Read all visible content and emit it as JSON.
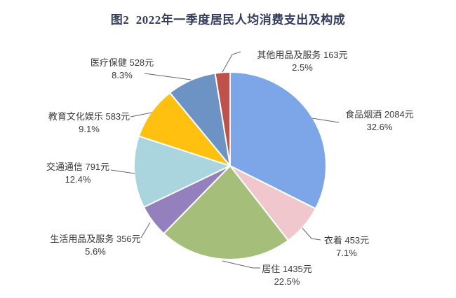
{
  "chart_data": {
    "type": "pie",
    "title": "图2  2022年一季度居民人均消费支出及构成",
    "unit": "元",
    "legend": "none",
    "label_style": "leader-lines",
    "start_angle_deg": 0,
    "direction": "clockwise",
    "colors": {
      "title": "#333B5E",
      "label_text": "#3A3A3A",
      "leader_line": "#666666",
      "slice_border": "#FFFFFF"
    },
    "slices": [
      {
        "name": "食品烟酒",
        "value": 2084,
        "value_label": "2084元",
        "pct": 32.6,
        "pct_label": "32.6%",
        "color": "#7CA6E8"
      },
      {
        "name": "衣着",
        "value": 453,
        "value_label": "453元",
        "pct": 7.1,
        "pct_label": "7.1%",
        "color": "#F0C7CD"
      },
      {
        "name": "居住",
        "value": 1435,
        "value_label": "1435元",
        "pct": 22.5,
        "pct_label": "22.5%",
        "color": "#A5BF7B"
      },
      {
        "name": "生活用品及服务",
        "value": 356,
        "value_label": "356元",
        "pct": 5.6,
        "pct_label": "5.6%",
        "color": "#9480BD"
      },
      {
        "name": "交通通信",
        "value": 791,
        "value_label": "791元",
        "pct": 12.4,
        "pct_label": "12.4%",
        "color": "#ABD5DE"
      },
      {
        "name": "教育文化娱乐",
        "value": 583,
        "value_label": "583元",
        "pct": 9.1,
        "pct_label": "9.1%",
        "color": "#FFC010"
      },
      {
        "name": "医疗保健",
        "value": 528,
        "value_label": "528元",
        "pct": 8.3,
        "pct_label": "8.3%",
        "color": "#6D92C4"
      },
      {
        "name": "其他用品及服务",
        "value": 163,
        "value_label": "163元",
        "pct": 2.5,
        "pct_label": "2.5%",
        "color": "#C0504A"
      }
    ]
  }
}
